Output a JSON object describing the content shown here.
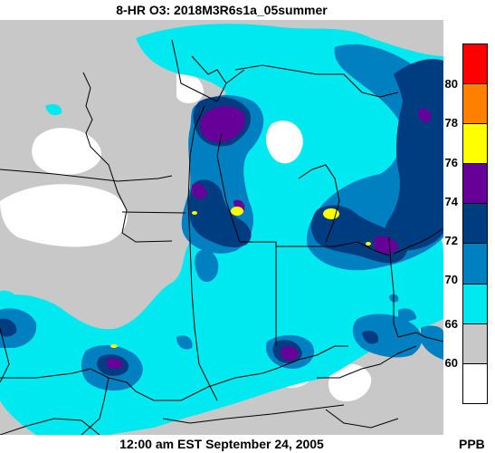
{
  "title": "8-HR O3: 2018M3R6s1a_05summer",
  "timestamp": "12:00 am EST September 24, 2005",
  "unit": "PPB",
  "legend": {
    "labels": [
      "80",
      "78",
      "76",
      "74",
      "72",
      "70",
      "66",
      "60"
    ],
    "colors": [
      "#ff0000",
      "#ff8000",
      "#ffff00",
      "#660099",
      "#003d80",
      "#0080c0",
      "#00e8f0",
      "#c8c8c8",
      "#ffffff"
    ]
  }
}
